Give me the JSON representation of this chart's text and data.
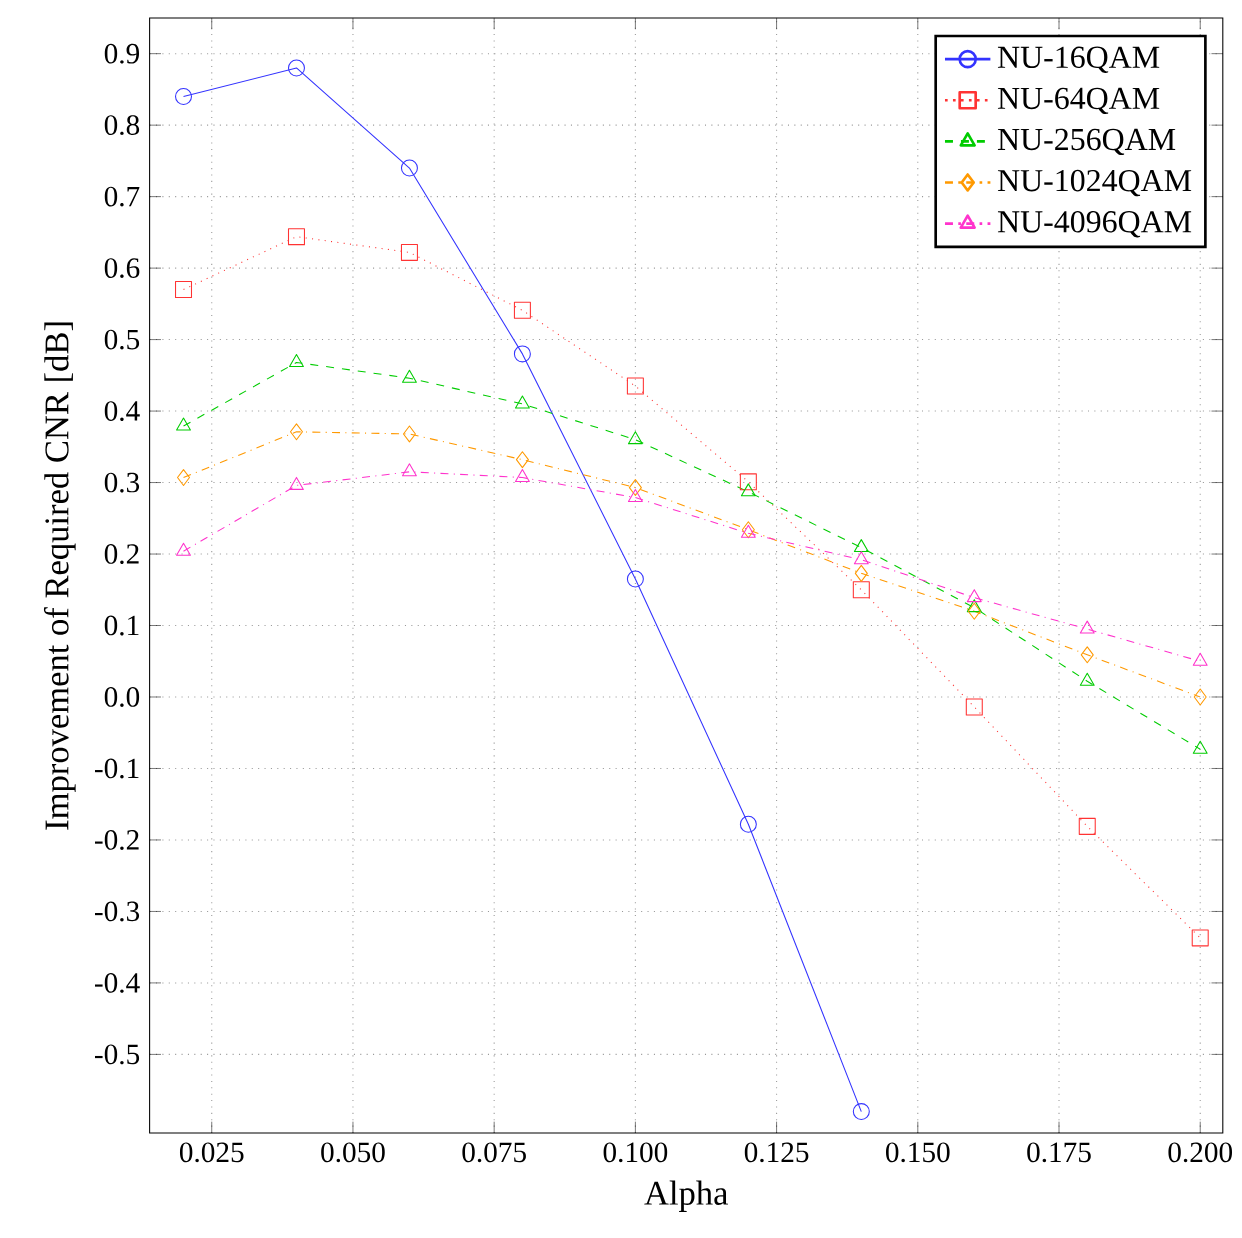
{
  "chart_data": {
    "type": "line",
    "xlabel": "Alpha",
    "ylabel": "Improvement of Required CNR [dB]",
    "xlim": [
      0.014,
      0.204
    ],
    "ylim": [
      -0.61,
      0.95
    ],
    "xticks": [
      0.025,
      {
        "value": 0.05,
        "label": "0.050"
      },
      0.075,
      {
        "value": 0.1,
        "label": "0.100"
      },
      0.125,
      {
        "value": 0.15,
        "label": "0.150"
      },
      0.175,
      {
        "value": 0.2,
        "label": "0.200"
      }
    ],
    "yticks": [
      {
        "value": -0.5,
        "label": "-0.5"
      },
      {
        "value": -0.4,
        "label": "-0.4"
      },
      {
        "value": -0.3,
        "label": "-0.3"
      },
      {
        "value": -0.2,
        "label": "-0.2"
      },
      {
        "value": -0.1,
        "label": "-0.1"
      },
      {
        "value": 0,
        "label": "0.0"
      },
      0.1,
      0.2,
      0.3,
      0.4,
      0.5,
      0.6,
      0.7,
      0.8,
      0.9
    ],
    "grid": true,
    "legend": "top right",
    "series": [
      {
        "name": "NU-16QAM",
        "color": "#3333ff",
        "marker": "circle",
        "line_style": "solid",
        "x": [
          0.02,
          0.04,
          0.06,
          0.08,
          0.1,
          0.12,
          0.14
        ],
        "values": [
          0.84,
          0.88,
          0.74,
          0.48,
          0.165,
          -0.178,
          -0.58
        ]
      },
      {
        "name": "NU-64QAM",
        "color": "#ff3333",
        "marker": "square",
        "line_style": "dotted",
        "x": [
          0.02,
          0.04,
          0.06,
          0.08,
          0.1,
          0.12,
          0.14,
          0.16,
          0.18,
          0.2
        ],
        "values": [
          0.57,
          0.644,
          0.622,
          0.541,
          0.435,
          0.301,
          0.15,
          -0.014,
          -0.181,
          -0.337
        ]
      },
      {
        "name": "NU-256QAM",
        "color": "#00cc00",
        "marker": "triangle",
        "line_style": "dashed",
        "x": [
          0.02,
          0.04,
          0.06,
          0.08,
          0.1,
          0.12,
          0.14,
          0.16,
          0.18,
          0.2
        ],
        "values": [
          0.379,
          0.468,
          0.446,
          0.41,
          0.36,
          0.287,
          0.209,
          0.125,
          0.022,
          -0.073
        ]
      },
      {
        "name": "NU-1024QAM",
        "color": "#ff9900",
        "marker": "diamond",
        "line_style": "dashdot",
        "x": [
          0.02,
          0.04,
          0.06,
          0.08,
          0.1,
          0.12,
          0.14,
          0.16,
          0.18,
          0.2
        ],
        "values": [
          0.307,
          0.371,
          0.368,
          0.332,
          0.293,
          0.234,
          0.173,
          0.12,
          0.059,
          0.0
        ]
      },
      {
        "name": "NU-4096QAM",
        "color": "#ff33cc",
        "marker": "triangle-down",
        "line_style": "dashdot",
        "x": [
          0.02,
          0.04,
          0.06,
          0.08,
          0.1,
          0.12,
          0.14,
          0.16,
          0.18,
          0.2
        ],
        "values": [
          0.204,
          0.296,
          0.315,
          0.307,
          0.279,
          0.229,
          0.192,
          0.139,
          0.095,
          0.05
        ]
      }
    ]
  }
}
